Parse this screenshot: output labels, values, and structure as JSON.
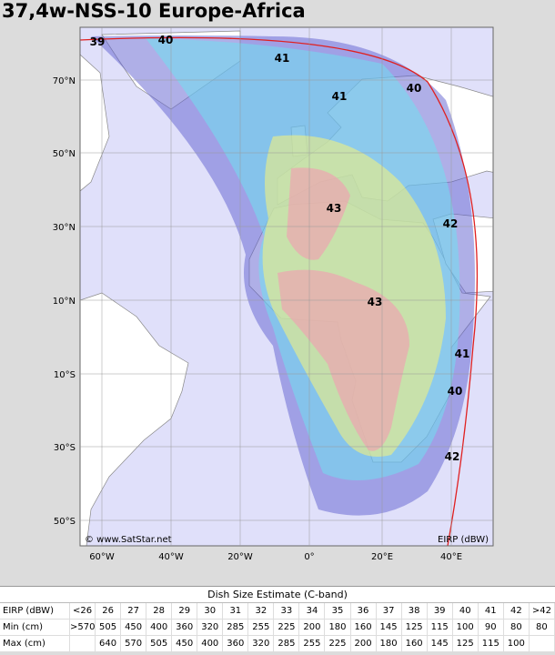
{
  "header": {
    "title": "37,4w-NSS-10 Europe-Africa"
  },
  "map": {
    "lat_labels": [
      "70°N",
      "50°N",
      "30°N",
      "10°N",
      "10°S",
      "30°S",
      "50°S"
    ],
    "lon_labels": [
      "60°W",
      "40°W",
      "20°W",
      "0°",
      "20°E",
      "40°E"
    ],
    "contour_labels": [
      39,
      40,
      41,
      41,
      40,
      43,
      42,
      43,
      41,
      40,
      42
    ],
    "credit": "© www.SatStar.net",
    "legend_unit": "EIRP (dBW)"
  },
  "table": {
    "title": "Dish Size Estimate (C-band)",
    "rows": [
      [
        "EIRP (dBW)",
        "<26",
        26,
        27,
        28,
        29,
        30,
        31,
        32,
        33,
        34,
        35,
        36,
        37,
        38,
        39,
        40,
        41,
        42,
        ">42"
      ],
      [
        "Min (cm)",
        ">570",
        505,
        450,
        400,
        360,
        320,
        285,
        255,
        225,
        200,
        180,
        160,
        145,
        125,
        115,
        100,
        90,
        80,
        80
      ],
      [
        "Max (cm)",
        null,
        640,
        570,
        505,
        450,
        400,
        360,
        320,
        285,
        255,
        225,
        200,
        180,
        160,
        145,
        125,
        115,
        100,
        null
      ]
    ]
  }
}
